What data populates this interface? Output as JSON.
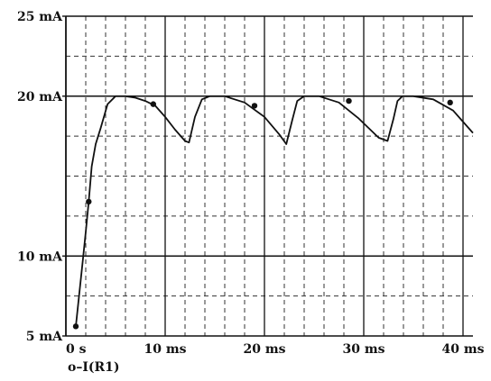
{
  "chart_data": {
    "type": "line",
    "title": "",
    "xlabel": "",
    "ylabel": "",
    "xlim": [
      0,
      41
    ],
    "ylim": [
      5,
      25
    ],
    "grid": "dashed minor grid with solid major lines",
    "x_ticks": [
      {
        "value": 0,
        "label": "0 s"
      },
      {
        "value": 10,
        "label": "10 ms"
      },
      {
        "value": 20,
        "label": "20 ms"
      },
      {
        "value": 30,
        "label": "30 ms"
      },
      {
        "value": 40,
        "label": "40 ms"
      }
    ],
    "y_ticks": [
      {
        "value": 5,
        "label": "5 mA"
      },
      {
        "value": 10,
        "label": "10 mA"
      },
      {
        "value": 20,
        "label": "20 mA"
      },
      {
        "value": 25,
        "label": "25 mA"
      }
    ],
    "series": [
      {
        "name": "I(R1)",
        "legend_label": "o–I(R1)",
        "color": "#111111",
        "marker": "filled-circle",
        "x": [
          1.0,
          1.7,
          2.0,
          2.3,
          2.6,
          3.0,
          3.5,
          4.2,
          5.0,
          6.0,
          7.0,
          8.0,
          9.0,
          10.0,
          11.0,
          12.0,
          12.4,
          13.0,
          13.7,
          14.5,
          16.0,
          18.0,
          20.0,
          21.5,
          22.2,
          22.8,
          23.3,
          24.0,
          25.5,
          27.5,
          29.5,
          31.5,
          32.4,
          33.0,
          33.4,
          33.9,
          35.0,
          37.0,
          39.0,
          41.0
        ],
        "y": [
          5.6,
          9.7,
          11.5,
          13.4,
          15.6,
          17.0,
          18.0,
          19.5,
          20.0,
          20.0,
          19.9,
          19.7,
          19.4,
          18.7,
          17.9,
          17.2,
          17.1,
          18.7,
          19.8,
          20.0,
          20.0,
          19.6,
          18.7,
          17.6,
          17.0,
          18.5,
          19.7,
          20.0,
          20.0,
          19.6,
          18.6,
          17.4,
          17.2,
          18.6,
          19.7,
          20.0,
          20.0,
          19.8,
          19.1,
          17.7
        ],
        "marker_points": [
          [
            1.0,
            5.6
          ],
          [
            2.3,
            13.4
          ],
          [
            8.8,
            19.5
          ],
          [
            19.0,
            19.4
          ],
          [
            28.5,
            19.7
          ],
          [
            38.7,
            19.6
          ]
        ]
      }
    ]
  }
}
